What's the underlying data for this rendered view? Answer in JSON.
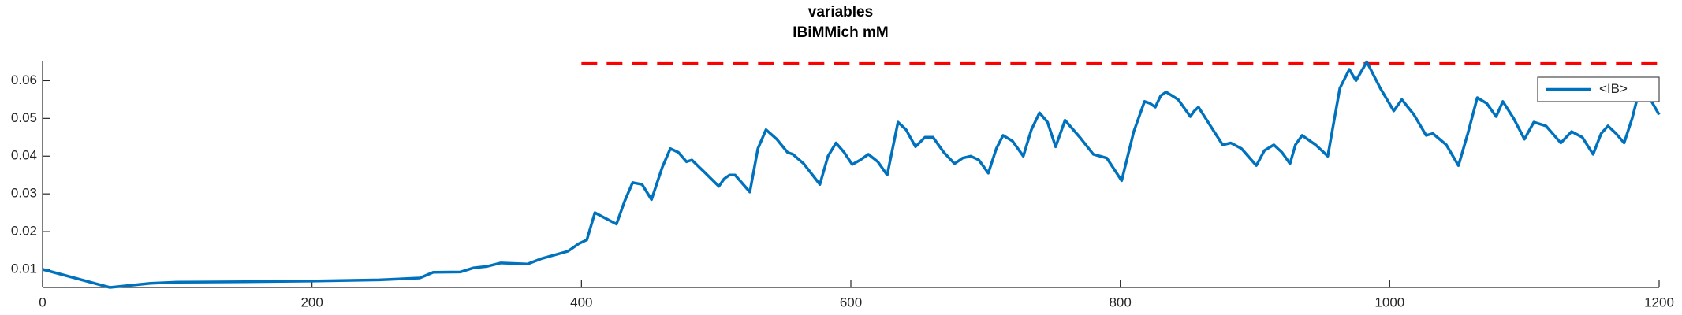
{
  "chart_data": {
    "type": "line",
    "title": "variables",
    "subtitle": "IBiMMich mM",
    "x": [
      0,
      50,
      80,
      100,
      150,
      200,
      250,
      280,
      290,
      310,
      320,
      330,
      340,
      360,
      370,
      390,
      398,
      404,
      410,
      426,
      432,
      438,
      445,
      452,
      460,
      466,
      472,
      478,
      482,
      492,
      502,
      506,
      510,
      514,
      525,
      531,
      537,
      545,
      553,
      557,
      565,
      577,
      583,
      589,
      595,
      601,
      607,
      613,
      620,
      627,
      635,
      641,
      648,
      655,
      661,
      669,
      677,
      683,
      689,
      695,
      702,
      708,
      713,
      720,
      728,
      734,
      740,
      746,
      752,
      755,
      759,
      770,
      780,
      790,
      801,
      810,
      818,
      822,
      826,
      830,
      834,
      843,
      852,
      855,
      858,
      867,
      876,
      882,
      890,
      901,
      907,
      914,
      920,
      926,
      930,
      935,
      945,
      954,
      959,
      963,
      970,
      975,
      983,
      993,
      1003,
      1009,
      1018,
      1027,
      1032,
      1042,
      1051,
      1058,
      1065,
      1072,
      1079,
      1084,
      1092,
      1100,
      1107,
      1116,
      1127,
      1135,
      1143,
      1151,
      1157,
      1162,
      1168,
      1174,
      1180,
      1185,
      1192,
      1200
    ],
    "series": [
      {
        "name": "<IB>",
        "color": "#0072bd",
        "values": [
          0.01,
          0.0052,
          0.0063,
          0.0066,
          0.0067,
          0.0069,
          0.0072,
          0.0077,
          0.0092,
          0.0093,
          0.0104,
          0.0108,
          0.0117,
          0.0114,
          0.0128,
          0.0148,
          0.0168,
          0.0178,
          0.025,
          0.022,
          0.028,
          0.033,
          0.0325,
          0.0285,
          0.037,
          0.042,
          0.041,
          0.0385,
          0.039,
          0.0355,
          0.032,
          0.034,
          0.035,
          0.035,
          0.0305,
          0.042,
          0.047,
          0.0445,
          0.041,
          0.0405,
          0.038,
          0.0325,
          0.04,
          0.0435,
          0.041,
          0.0378,
          0.039,
          0.0405,
          0.0385,
          0.035,
          0.049,
          0.047,
          0.0425,
          0.045,
          0.045,
          0.041,
          0.038,
          0.0395,
          0.04,
          0.039,
          0.0355,
          0.042,
          0.0455,
          0.044,
          0.04,
          0.047,
          0.0515,
          0.049,
          0.0425,
          0.0455,
          0.0495,
          0.045,
          0.0405,
          0.0395,
          0.0335,
          0.0465,
          0.0545,
          0.054,
          0.053,
          0.056,
          0.057,
          0.055,
          0.0505,
          0.052,
          0.053,
          0.048,
          0.043,
          0.0435,
          0.042,
          0.0375,
          0.0415,
          0.043,
          0.041,
          0.038,
          0.043,
          0.0455,
          0.043,
          0.04,
          0.05,
          0.058,
          0.063,
          0.06,
          0.065,
          0.058,
          0.052,
          0.055,
          0.051,
          0.0455,
          0.046,
          0.043,
          0.0375,
          0.046,
          0.0555,
          0.054,
          0.0505,
          0.0545,
          0.05,
          0.0445,
          0.049,
          0.048,
          0.0435,
          0.0465,
          0.045,
          0.0405,
          0.046,
          0.048,
          0.046,
          0.0435,
          0.05,
          0.057,
          0.056,
          0.051
        ]
      }
    ],
    "reference_line": {
      "x": [
        400,
        1200
      ],
      "y": 0.0645,
      "color": "#ff0000"
    },
    "xlim": [
      0,
      1200
    ],
    "xticks": [
      0,
      200,
      400,
      600,
      800,
      1000,
      1200
    ],
    "ylim": [
      0.0052,
      0.0651
    ],
    "yticks": [
      0.01,
      0.02,
      0.03,
      0.04,
      0.05,
      0.06
    ],
    "legend": "top-right"
  }
}
